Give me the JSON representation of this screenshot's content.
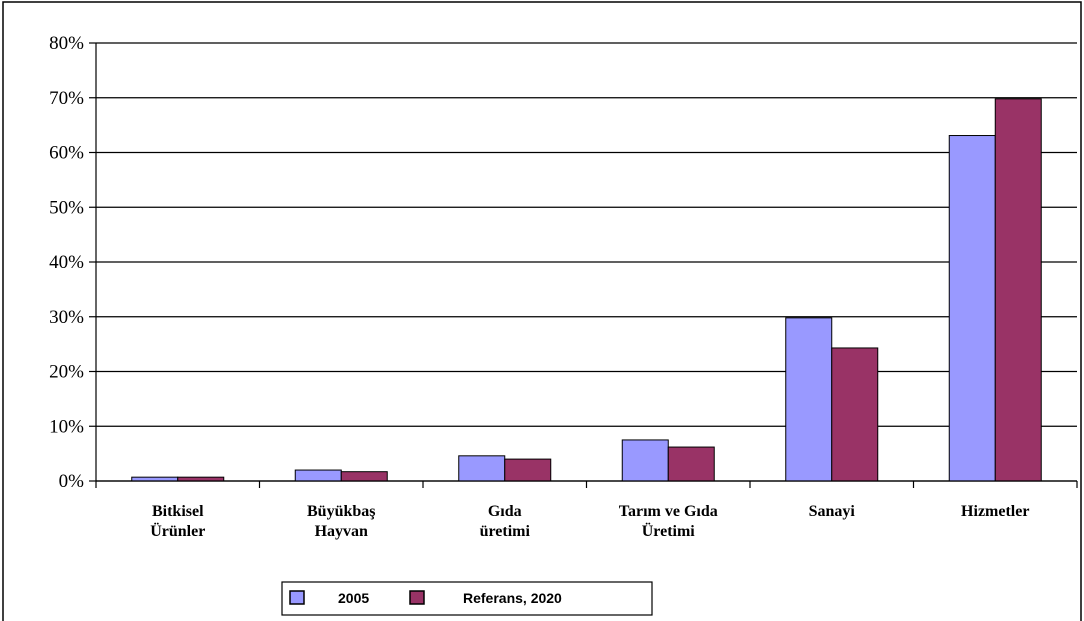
{
  "chart_data": {
    "type": "bar",
    "categories": [
      [
        "Bitkisel",
        "Ürünler"
      ],
      [
        "Büyükbaş",
        "Hayvan"
      ],
      [
        "Gıda",
        "üretimi"
      ],
      [
        "Tarım ve Gıda",
        "Üretimi"
      ],
      [
        "Sanayi"
      ],
      [
        "Hizmetler"
      ]
    ],
    "series": [
      {
        "name": "2005",
        "values": [
          0.7,
          2.0,
          4.6,
          7.5,
          29.8,
          63.1
        ],
        "color": "#9999ff"
      },
      {
        "name": "Referans, 2020",
        "values": [
          0.7,
          1.7,
          4.0,
          6.2,
          24.3,
          69.8
        ],
        "color": "#993366"
      }
    ],
    "ylim": [
      0,
      80
    ],
    "yticks": [
      0,
      10,
      20,
      30,
      40,
      50,
      60,
      70,
      80
    ],
    "ytick_labels": [
      "0%",
      "10%",
      "20%",
      "30%",
      "40%",
      "50%",
      "60%",
      "70%",
      "80%"
    ],
    "grid": true,
    "legend_position": "bottom"
  }
}
